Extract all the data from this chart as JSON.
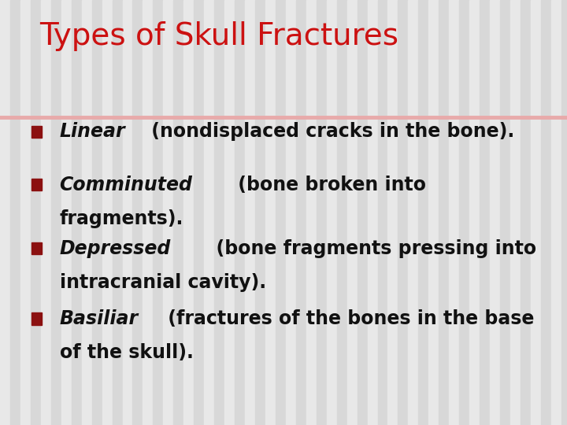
{
  "title": "Types of Skull Fractures",
  "title_color": "#CC1111",
  "title_fontsize": 28,
  "separator_color": "#E8AAAA",
  "bg_stripe_light": "#E8E8E8",
  "bg_stripe_dark": "#D8D8D8",
  "bullet_color": "#8B1010",
  "text_color": "#111111",
  "bullet_items": [
    {
      "italic_part": "Linear",
      "normal_part": " (nondisplaced cracks in the bone).",
      "continuation": null
    },
    {
      "italic_part": "Comminuted",
      "normal_part": " (bone broken into",
      "continuation": "fragments)."
    },
    {
      "italic_part": "Depressed",
      "normal_part": "  (bone fragments pressing into",
      "continuation": "intracranial cavity)."
    },
    {
      "italic_part": "Basiliar",
      "normal_part": " (fractures of the bones in the base",
      "continuation": "of the skull)."
    }
  ],
  "bullet_fontsize": 17,
  "figwidth": 7.2,
  "figheight": 5.4,
  "dpi": 100
}
